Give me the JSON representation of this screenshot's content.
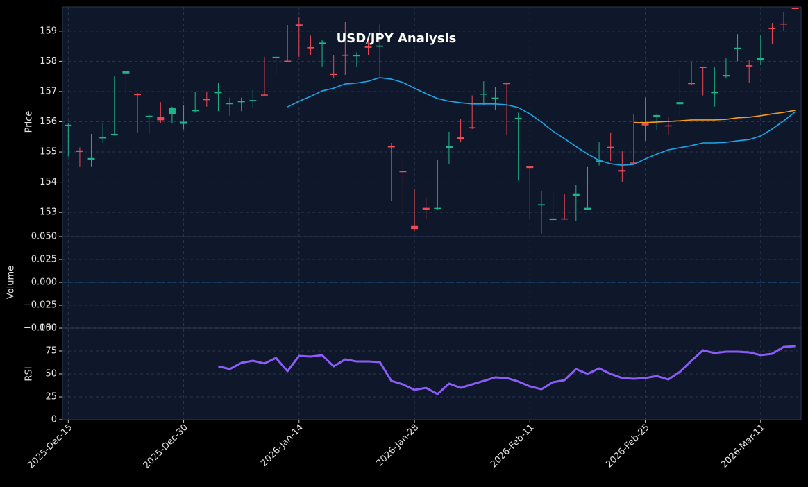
{
  "chart_data": [
    {
      "type": "candlestick",
      "title": "USD/JPY Analysis",
      "y_label": "Price",
      "categories": [
        "2025-Dec-15",
        null,
        null,
        null,
        null,
        null,
        null,
        null,
        null,
        null,
        "2025-Dec-30",
        null,
        null,
        null,
        null,
        null,
        null,
        null,
        null,
        null,
        "2026-Jan-14",
        null,
        null,
        null,
        null,
        null,
        null,
        null,
        null,
        null,
        "2026-Jan-28",
        null,
        null,
        null,
        null,
        null,
        null,
        null,
        null,
        null,
        "2026-Feb-11",
        null,
        null,
        null,
        null,
        null,
        null,
        null,
        null,
        null,
        "2026-Feb-25",
        null,
        null,
        null,
        null,
        null,
        null,
        null,
        null,
        null,
        "2026-Mar-11",
        null,
        null,
        null
      ],
      "open": [
        155.85,
        155.05,
        154.75,
        155.45,
        155.55,
        157.6,
        156.92,
        156.15,
        156.15,
        156.25,
        155.93,
        156.35,
        156.75,
        156.95,
        156.58,
        156.65,
        156.68,
        156.9,
        158.1,
        158.02,
        159.22,
        158.47,
        158.57,
        157.6,
        158.22,
        158.17,
        158.5,
        158.48,
        155.2,
        154.37,
        152.55,
        153.15,
        153.12,
        155.12,
        155.5,
        155.82,
        156.9,
        156.78,
        157.28,
        156.1,
        154.52,
        153.23,
        152.75,
        152.8,
        153.55,
        153.08,
        154.68,
        155.17,
        154.4,
        154.65,
        155.95,
        156.15,
        155.88,
        156.58,
        157.28,
        157.82,
        156.95,
        157.5,
        158.4,
        157.87,
        158.05,
        159.1,
        159.25,
        159.77
      ],
      "high": [
        155.95,
        155.15,
        155.6,
        155.95,
        157.5,
        157.7,
        156.95,
        156.25,
        156.65,
        156.5,
        156.55,
        157.0,
        157.0,
        157.28,
        156.8,
        156.8,
        157.05,
        158.15,
        158.2,
        159.2,
        159.45,
        158.85,
        158.7,
        158.2,
        159.3,
        158.3,
        158.72,
        159.22,
        155.3,
        154.85,
        153.78,
        153.5,
        154.75,
        155.67,
        156.08,
        156.87,
        157.34,
        157.15,
        157.3,
        156.3,
        154.53,
        153.7,
        153.65,
        153.62,
        153.9,
        154.5,
        155.32,
        155.65,
        155.02,
        156.25,
        156.8,
        156.27,
        156.17,
        157.76,
        157.98,
        157.83,
        157.8,
        158.1,
        158.9,
        158.05,
        158.88,
        159.27,
        159.64,
        159.78
      ],
      "low": [
        154.85,
        154.5,
        154.5,
        155.3,
        155.55,
        156.9,
        155.65,
        155.6,
        155.95,
        155.95,
        155.75,
        156.3,
        156.5,
        156.35,
        156.2,
        156.35,
        156.45,
        156.85,
        157.55,
        157.98,
        158.15,
        158.2,
        157.83,
        157.45,
        157.55,
        157.8,
        158.2,
        157.5,
        153.37,
        152.88,
        152.38,
        152.77,
        153.1,
        154.6,
        155.32,
        155.76,
        156.55,
        156.4,
        155.55,
        154.05,
        152.8,
        152.3,
        152.73,
        152.76,
        152.72,
        153.07,
        154.55,
        154.7,
        154.0,
        154.6,
        155.37,
        155.73,
        155.57,
        156.2,
        157.2,
        156.87,
        156.5,
        157.43,
        158.0,
        157.3,
        157.87,
        158.58,
        159.0,
        159.73
      ],
      "close": [
        155.9,
        155.0,
        154.8,
        155.5,
        155.6,
        157.68,
        156.88,
        156.2,
        156.05,
        156.45,
        156.0,
        156.4,
        156.72,
        156.98,
        156.62,
        156.68,
        156.72,
        156.87,
        158.15,
        157.98,
        159.18,
        158.43,
        158.62,
        157.55,
        158.18,
        158.2,
        158.45,
        158.52,
        155.15,
        154.33,
        152.45,
        153.08,
        153.15,
        155.2,
        155.43,
        155.78,
        156.93,
        156.8,
        157.25,
        156.13,
        154.47,
        153.27,
        152.8,
        152.78,
        153.63,
        153.15,
        154.72,
        155.13,
        154.35,
        154.62,
        155.88,
        156.22,
        155.85,
        156.65,
        157.25,
        157.78,
        156.98,
        157.55,
        158.45,
        157.83,
        158.12,
        159.07,
        159.22,
        159.73
      ],
      "up_color": "#1fb58a",
      "down_color": "#ef4b55",
      "series": [
        {
          "color": "#1ea7e8",
          "values": [
            null,
            null,
            null,
            null,
            null,
            null,
            null,
            null,
            null,
            null,
            null,
            null,
            null,
            null,
            null,
            null,
            null,
            null,
            null,
            156.49,
            156.68,
            156.84,
            157.02,
            157.11,
            157.25,
            157.28,
            157.34,
            157.46,
            157.41,
            157.3,
            157.11,
            156.93,
            156.77,
            156.68,
            156.63,
            156.59,
            156.59,
            156.59,
            156.56,
            156.47,
            156.26,
            155.99,
            155.69,
            155.44,
            155.18,
            154.93,
            154.72,
            154.61,
            154.56,
            154.59,
            154.77,
            154.93,
            155.07,
            155.14,
            155.21,
            155.3,
            155.3,
            155.32,
            155.37,
            155.41,
            155.53,
            155.76,
            156.03,
            156.33
          ]
        },
        {
          "color": "#f59e1b",
          "values": [
            null,
            null,
            null,
            null,
            null,
            null,
            null,
            null,
            null,
            null,
            null,
            null,
            null,
            null,
            null,
            null,
            null,
            null,
            null,
            null,
            null,
            null,
            null,
            null,
            null,
            null,
            null,
            null,
            null,
            null,
            null,
            null,
            null,
            null,
            null,
            null,
            null,
            null,
            null,
            null,
            null,
            null,
            null,
            null,
            null,
            null,
            null,
            null,
            null,
            155.97,
            155.97,
            155.99,
            156.01,
            156.03,
            156.06,
            156.06,
            156.06,
            156.08,
            156.13,
            156.15,
            156.2,
            156.26,
            156.31,
            156.38
          ]
        }
      ],
      "ylim": [
        152.2,
        159.8
      ],
      "yticks": [
        153,
        154,
        155,
        156,
        157,
        158,
        159
      ],
      "grid": true
    },
    {
      "type": "bar",
      "y_label": "Volume",
      "color": "#1e88e5",
      "values": [
        0,
        0,
        0,
        0,
        0,
        0,
        0,
        0,
        0,
        0,
        0,
        0,
        0,
        0,
        0,
        0,
        0,
        0,
        0,
        0,
        0,
        0,
        0,
        0,
        0,
        0,
        0,
        0,
        0,
        0,
        0,
        0,
        0,
        0,
        0,
        0,
        0,
        0,
        0,
        0,
        0,
        0,
        0,
        0,
        0,
        0,
        0,
        0,
        0,
        0,
        0,
        0,
        0,
        0,
        0,
        0,
        0,
        0,
        0,
        0,
        0,
        0,
        0,
        0
      ],
      "ylim": [
        -0.05,
        0.05
      ],
      "yticks": [
        {
          "value": -0.05,
          "label": "−0.050"
        },
        {
          "value": -0.025,
          "label": "−0.025"
        },
        {
          "value": 0,
          "label": "0.000"
        },
        {
          "value": 0.025,
          "label": "0.025"
        },
        {
          "value": 0.05,
          "label": "0.050"
        }
      ],
      "grid": true
    },
    {
      "type": "line",
      "y_label": "RSI",
      "series": [
        {
          "color": "#8b5cf6",
          "values": [
            null,
            null,
            null,
            null,
            null,
            null,
            null,
            null,
            null,
            null,
            null,
            null,
            null,
            58.3,
            55.3,
            62.1,
            64.4,
            61.4,
            67.4,
            53.0,
            69.7,
            68.9,
            70.5,
            58.3,
            65.9,
            63.6,
            63.6,
            62.9,
            42.4,
            38.6,
            32.6,
            34.8,
            28.0,
            39.4,
            34.8,
            38.6,
            42.4,
            46.2,
            45.5,
            41.7,
            36.4,
            33.3,
            40.9,
            43.2,
            55.3,
            50.0,
            56.1,
            50.0,
            45.5,
            44.7,
            45.5,
            47.7,
            43.9,
            52.3,
            64.4,
            75.8,
            72.7,
            74.2,
            74.2,
            73.5,
            70.5,
            72.0,
            79.5,
            80.3
          ]
        }
      ],
      "ylim": [
        0,
        100
      ],
      "yticks": [
        0,
        25,
        50,
        75,
        100
      ],
      "grid": true
    }
  ]
}
